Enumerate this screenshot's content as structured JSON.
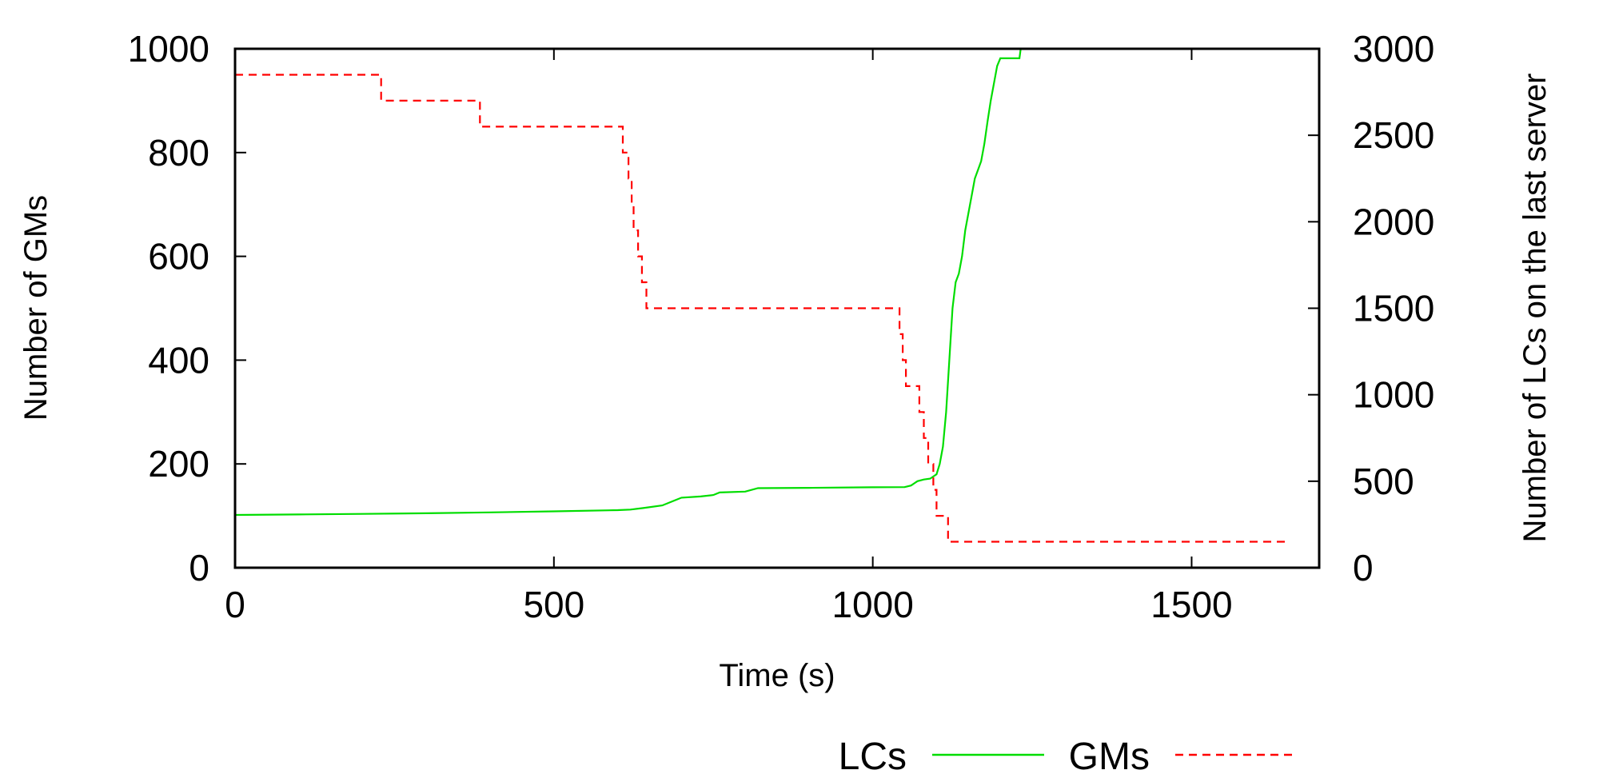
{
  "chart_data": {
    "type": "line",
    "xlabel": "Time (s)",
    "ylabel_left": "Number of GMs",
    "ylabel_right": "Number of LCs on the last server",
    "xlim": [
      0,
      1700
    ],
    "ylim_left": [
      0,
      1000
    ],
    "ylim_right": [
      0,
      3000
    ],
    "x_ticks": [
      "0",
      "500",
      "1000",
      "1500"
    ],
    "y_ticks_left": [
      "0",
      "200",
      "400",
      "600",
      "800",
      "1000"
    ],
    "y_ticks_right": [
      "0",
      "500",
      "1000",
      "1500",
      "2000",
      "2500",
      "3000"
    ],
    "grid": false,
    "legend_position": "bottom",
    "series": [
      {
        "name": "LCs",
        "axis": "right",
        "color": "#00dd00",
        "style": "solid",
        "points": [
          [
            0,
            305
          ],
          [
            100,
            308
          ],
          [
            200,
            311
          ],
          [
            300,
            315
          ],
          [
            400,
            320
          ],
          [
            500,
            326
          ],
          [
            600,
            333
          ],
          [
            620,
            336
          ],
          [
            640,
            345
          ],
          [
            670,
            360
          ],
          [
            690,
            390
          ],
          [
            700,
            405
          ],
          [
            730,
            412
          ],
          [
            750,
            420
          ],
          [
            760,
            435
          ],
          [
            800,
            440
          ],
          [
            820,
            460
          ],
          [
            900,
            462
          ],
          [
            1000,
            465
          ],
          [
            1050,
            466
          ],
          [
            1060,
            475
          ],
          [
            1070,
            500
          ],
          [
            1080,
            510
          ],
          [
            1090,
            515
          ],
          [
            1100,
            540
          ],
          [
            1105,
            600
          ],
          [
            1110,
            700
          ],
          [
            1115,
            900
          ],
          [
            1120,
            1200
          ],
          [
            1125,
            1500
          ],
          [
            1130,
            1650
          ],
          [
            1135,
            1700
          ],
          [
            1140,
            1800
          ],
          [
            1145,
            1950
          ],
          [
            1150,
            2050
          ],
          [
            1155,
            2150
          ],
          [
            1160,
            2250
          ],
          [
            1165,
            2300
          ],
          [
            1170,
            2350
          ],
          [
            1175,
            2450
          ],
          [
            1180,
            2580
          ],
          [
            1185,
            2700
          ],
          [
            1190,
            2800
          ],
          [
            1195,
            2900
          ],
          [
            1200,
            2945
          ],
          [
            1220,
            2945
          ],
          [
            1230,
            2945
          ],
          [
            1232,
            3000
          ]
        ]
      },
      {
        "name": "GMs",
        "axis": "left",
        "color": "#ff0000",
        "style": "dashed",
        "points": [
          [
            0,
            950
          ],
          [
            229,
            950
          ],
          [
            229,
            900
          ],
          [
            384,
            900
          ],
          [
            384,
            850
          ],
          [
            608,
            850
          ],
          [
            608,
            800
          ],
          [
            617,
            800
          ],
          [
            617,
            750
          ],
          [
            622,
            750
          ],
          [
            622,
            700
          ],
          [
            625,
            700
          ],
          [
            625,
            650
          ],
          [
            632,
            650
          ],
          [
            632,
            600
          ],
          [
            638,
            600
          ],
          [
            638,
            550
          ],
          [
            645,
            550
          ],
          [
            645,
            500
          ],
          [
            1042,
            500
          ],
          [
            1042,
            450
          ],
          [
            1047,
            450
          ],
          [
            1047,
            400
          ],
          [
            1052,
            400
          ],
          [
            1052,
            350
          ],
          [
            1073,
            350
          ],
          [
            1073,
            300
          ],
          [
            1080,
            300
          ],
          [
            1080,
            250
          ],
          [
            1087,
            250
          ],
          [
            1087,
            200
          ],
          [
            1095,
            200
          ],
          [
            1095,
            150
          ],
          [
            1100,
            150
          ],
          [
            1100,
            100
          ],
          [
            1118,
            100
          ],
          [
            1118,
            50
          ],
          [
            1650,
            50
          ]
        ]
      }
    ]
  }
}
